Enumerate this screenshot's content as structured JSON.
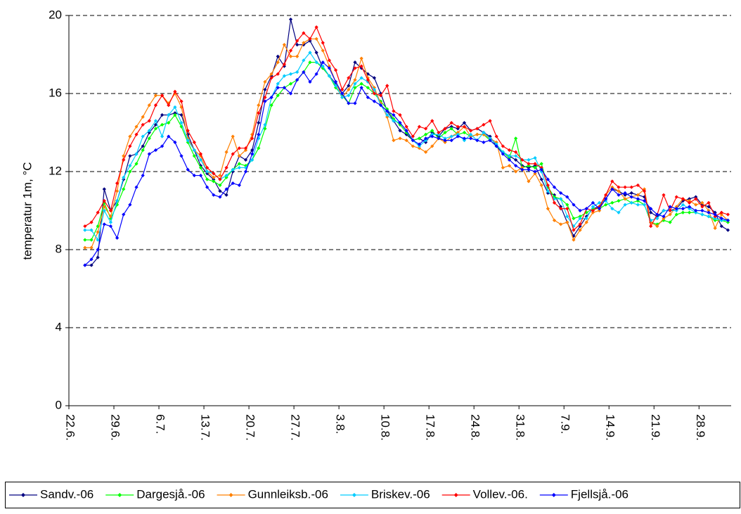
{
  "chart_data": {
    "type": "line",
    "y_label": "temperatur 1m, °C",
    "categories": [
      "22.6.",
      null,
      null,
      null,
      null,
      null,
      null,
      "29.6.",
      null,
      null,
      null,
      null,
      null,
      null,
      "6.7.",
      null,
      null,
      null,
      null,
      null,
      null,
      "13.7.",
      null,
      null,
      null,
      null,
      null,
      null,
      "20.7.",
      null,
      null,
      null,
      null,
      null,
      null,
      "27.7.",
      null,
      null,
      null,
      null,
      null,
      null,
      "3.8.",
      null,
      null,
      null,
      null,
      null,
      null,
      "10.8.",
      null,
      null,
      null,
      null,
      null,
      null,
      "17.8.",
      null,
      null,
      null,
      null,
      null,
      null,
      "24.8.",
      null,
      null,
      null,
      null,
      null,
      null,
      "31.8.",
      null,
      null,
      null,
      null,
      null,
      null,
      "7.9.",
      null,
      null,
      null,
      null,
      null,
      null,
      "14.9.",
      null,
      null,
      null,
      null,
      null,
      null,
      "21.9.",
      null,
      null,
      null,
      null,
      null,
      null,
      "28.9.",
      null,
      null,
      null,
      null
    ],
    "ylim": [
      0,
      20
    ],
    "yticks": [
      0,
      4,
      8,
      12,
      16,
      20
    ],
    "grid": true,
    "legend": "bottom",
    "series": [
      {
        "name": "Sandv.-06",
        "color": "#000080",
        "values": [
          null,
          null,
          7.2,
          7.2,
          7.6,
          11.1,
          10.0,
          10.5,
          11.6,
          12.8,
          12.9,
          13.3,
          14.0,
          14.4,
          14.9,
          14.9,
          15.0,
          14.9,
          13.9,
          13.1,
          12.3,
          11.9,
          11.6,
          11.0,
          10.8,
          12.0,
          12.8,
          12.6,
          13.1,
          14.5,
          16.2,
          16.9,
          17.9,
          17.4,
          19.8,
          18.5,
          18.5,
          18.7,
          18.1,
          17.3,
          16.9,
          16.5,
          16.0,
          16.4,
          17.6,
          17.3,
          17.0,
          16.8,
          16.0,
          15.1,
          14.6,
          14.1,
          13.9,
          13.6,
          13.7,
          13.5,
          14.0,
          13.8,
          14.2,
          14.3,
          14.2,
          14.5,
          14.1,
          14.2,
          14.0,
          13.8,
          13.3,
          13.0,
          12.8,
          12.6,
          12.3,
          12.2,
          12.3,
          11.6,
          10.9,
          10.8,
          10.2,
          9.4,
          8.7,
          9.2,
          9.7,
          10.1,
          10.2,
          10.6,
          11.1,
          11.0,
          10.8,
          10.9,
          10.8,
          10.7,
          9.9,
          9.7,
          10.0,
          10.0,
          10.1,
          10.5,
          10.6,
          10.7,
          10.3,
          10.2,
          9.9,
          9.2,
          9.0
        ]
      },
      {
        "name": "Dargesjå.-06",
        "color": "#00ff00",
        "values": [
          null,
          null,
          8.5,
          8.5,
          9.2,
          10.4,
          9.6,
          10.3,
          11.1,
          12.0,
          12.4,
          13.1,
          13.7,
          14.2,
          14.4,
          14.5,
          14.9,
          14.3,
          13.5,
          12.8,
          12.2,
          11.6,
          11.5,
          11.3,
          11.7,
          12.1,
          12.4,
          12.3,
          12.6,
          13.2,
          14.2,
          15.4,
          15.9,
          16.3,
          16.5,
          16.7,
          17.1,
          17.6,
          17.6,
          17.3,
          16.9,
          16.3,
          15.9,
          15.5,
          16.3,
          16.5,
          16.3,
          16.0,
          15.6,
          15.2,
          14.7,
          14.4,
          14.0,
          13.6,
          13.7,
          13.9,
          14.1,
          13.7,
          14.0,
          14.2,
          13.9,
          14.0,
          13.8,
          13.9,
          13.9,
          13.6,
          13.3,
          13.0,
          12.7,
          13.7,
          12.2,
          12.3,
          12.2,
          12.4,
          11.2,
          10.7,
          10.6,
          10.3,
          9.6,
          9.7,
          9.9,
          10.1,
          10.1,
          10.3,
          10.4,
          10.5,
          10.6,
          10.4,
          10.5,
          10.3,
          9.4,
          9.3,
          9.5,
          9.4,
          9.8,
          9.9,
          9.9,
          9.9,
          9.8,
          9.7,
          9.5,
          9.5,
          9.4
        ]
      },
      {
        "name": "Gunnleiksb.-06",
        "color": "#ff8000",
        "values": [
          null,
          null,
          8.1,
          8.1,
          8.9,
          10.2,
          9.7,
          11.0,
          12.8,
          13.8,
          14.3,
          14.8,
          15.4,
          15.9,
          15.9,
          15.5,
          16.0,
          15.3,
          13.7,
          13.1,
          12.8,
          12.0,
          11.7,
          11.8,
          13.0,
          13.8,
          12.8,
          13.1,
          13.9,
          15.4,
          16.6,
          17.0,
          17.6,
          18.5,
          17.9,
          17.9,
          18.6,
          18.8,
          18.8,
          18.2,
          17.4,
          16.6,
          15.8,
          16.2,
          16.7,
          17.8,
          16.8,
          16.3,
          15.5,
          14.8,
          13.6,
          13.7,
          13.6,
          13.3,
          13.2,
          13.0,
          13.3,
          13.7,
          13.5,
          13.8,
          14.0,
          14.3,
          13.8,
          13.9,
          13.9,
          13.7,
          13.5,
          12.2,
          12.3,
          12.0,
          12.2,
          11.5,
          11.9,
          11.3,
          10.1,
          9.5,
          9.3,
          9.4,
          8.5,
          9.0,
          9.4,
          9.9,
          10.0,
          10.8,
          11.2,
          11.0,
          10.6,
          10.7,
          10.8,
          11.1,
          9.4,
          9.2,
          9.6,
          9.8,
          10.2,
          10.6,
          10.5,
          10.3,
          10.4,
          10.0,
          9.1,
          9.8,
          9.5
        ]
      },
      {
        "name": "Briskev.-06",
        "color": "#00ccff",
        "values": [
          null,
          null,
          9.0,
          9.0,
          8.5,
          10.0,
          9.4,
          10.5,
          11.7,
          12.3,
          12.9,
          13.8,
          14.1,
          14.6,
          13.8,
          14.9,
          15.3,
          14.5,
          13.6,
          13.1,
          12.6,
          12.0,
          11.9,
          11.6,
          11.8,
          12.1,
          12.2,
          12.2,
          12.6,
          13.7,
          14.4,
          15.8,
          16.5,
          16.9,
          17.0,
          17.1,
          17.7,
          18.1,
          17.6,
          17.4,
          16.9,
          16.4,
          15.8,
          15.9,
          16.5,
          16.8,
          16.6,
          16.2,
          15.4,
          14.9,
          14.6,
          14.5,
          14.1,
          13.6,
          13.3,
          13.6,
          13.9,
          13.9,
          13.7,
          13.8,
          13.9,
          13.6,
          13.9,
          13.6,
          14.0,
          13.7,
          13.4,
          13.0,
          12.8,
          12.8,
          12.6,
          12.6,
          12.7,
          12.0,
          11.0,
          10.6,
          10.6,
          9.7,
          9.2,
          9.6,
          9.6,
          10.2,
          10.4,
          10.5,
          10.1,
          9.9,
          10.3,
          10.4,
          10.3,
          10.3,
          9.5,
          9.6,
          10.0,
          10.0,
          10.0,
          10.3,
          10.1,
          9.9,
          9.8,
          9.7,
          9.6,
          9.5,
          9.5
        ]
      },
      {
        "name": "Vollev.-06.",
        "color": "#ff0000",
        "values": [
          null,
          null,
          9.2,
          9.4,
          9.9,
          10.5,
          10.0,
          11.4,
          12.6,
          13.3,
          13.9,
          14.4,
          14.6,
          15.4,
          15.9,
          15.4,
          16.1,
          15.6,
          14.1,
          13.5,
          12.9,
          12.2,
          11.9,
          11.6,
          12.2,
          12.9,
          13.2,
          13.2,
          13.7,
          15.0,
          15.8,
          16.8,
          17.0,
          17.5,
          18.2,
          18.7,
          19.1,
          18.8,
          19.4,
          18.6,
          17.7,
          17.2,
          16.2,
          16.8,
          17.3,
          17.4,
          16.7,
          16.0,
          15.9,
          16.4,
          15.1,
          14.9,
          14.3,
          13.8,
          14.3,
          14.2,
          14.6,
          14.0,
          14.2,
          14.5,
          14.3,
          14.3,
          14.1,
          14.2,
          14.4,
          14.6,
          13.8,
          13.3,
          13.1,
          13.0,
          12.6,
          12.4,
          12.4,
          12.2,
          11.3,
          10.4,
          10.1,
          10.1,
          9.0,
          9.3,
          10.1,
          10.0,
          10.2,
          10.8,
          11.5,
          11.2,
          11.2,
          11.2,
          11.3,
          11.0,
          9.2,
          9.8,
          10.8,
          10.0,
          10.7,
          10.6,
          10.4,
          10.6,
          10.2,
          10.4,
          9.7,
          9.9,
          9.8
        ]
      },
      {
        "name": "Fjellsjå.-06",
        "color": "#0000ff",
        "values": [
          null,
          null,
          7.2,
          7.5,
          8.0,
          9.3,
          9.2,
          8.6,
          9.8,
          10.3,
          11.2,
          11.8,
          12.9,
          13.1,
          13.3,
          13.8,
          13.5,
          12.8,
          12.1,
          11.8,
          11.8,
          11.2,
          10.8,
          10.7,
          11.1,
          11.4,
          11.3,
          12.0,
          12.9,
          13.9,
          15.6,
          15.8,
          16.3,
          16.3,
          16.0,
          16.7,
          17.1,
          16.6,
          17.0,
          17.6,
          17.3,
          16.6,
          16.0,
          15.5,
          15.5,
          16.3,
          15.8,
          15.6,
          15.4,
          15.1,
          14.9,
          14.5,
          14.1,
          13.6,
          13.4,
          13.7,
          13.8,
          13.7,
          13.6,
          13.6,
          13.8,
          13.7,
          13.7,
          13.6,
          13.5,
          13.6,
          13.3,
          12.9,
          12.6,
          12.3,
          12.1,
          12.1,
          12.0,
          12.1,
          11.6,
          11.2,
          10.9,
          10.7,
          10.3,
          10.0,
          10.1,
          10.4,
          10.1,
          10.6,
          11.1,
          10.8,
          10.9,
          10.7,
          10.6,
          10.5,
          10.1,
          9.8,
          9.7,
          10.2,
          10.1,
          10.1,
          10.2,
          10.0,
          10.0,
          9.9,
          9.8,
          9.6,
          9.5
        ]
      }
    ]
  }
}
